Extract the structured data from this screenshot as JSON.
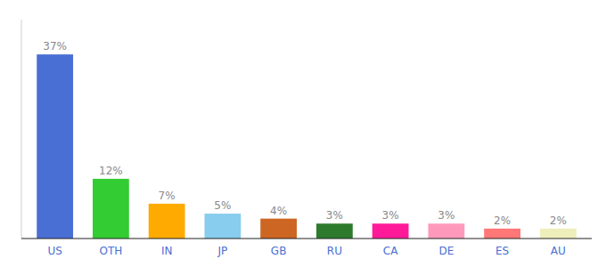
{
  "chart_data": {
    "type": "bar",
    "categories": [
      "US",
      "OTH",
      "IN",
      "JP",
      "GB",
      "RU",
      "CA",
      "DE",
      "ES",
      "AU"
    ],
    "values": [
      37,
      12,
      7,
      5,
      4,
      3,
      3,
      3,
      2,
      2
    ],
    "value_labels": [
      "37%",
      "12%",
      "7%",
      "5%",
      "4%",
      "3%",
      "3%",
      "3%",
      "2%",
      "2%"
    ],
    "colors": [
      "#4a6fd4",
      "#33cc33",
      "#ffaa00",
      "#88ccee",
      "#cc6622",
      "#2d7a2d",
      "#ff1a99",
      "#ff99bb",
      "#ff7777",
      "#eeeebb"
    ],
    "ylim": [
      0,
      44
    ],
    "data_labels": true,
    "tick_labels": "x"
  }
}
